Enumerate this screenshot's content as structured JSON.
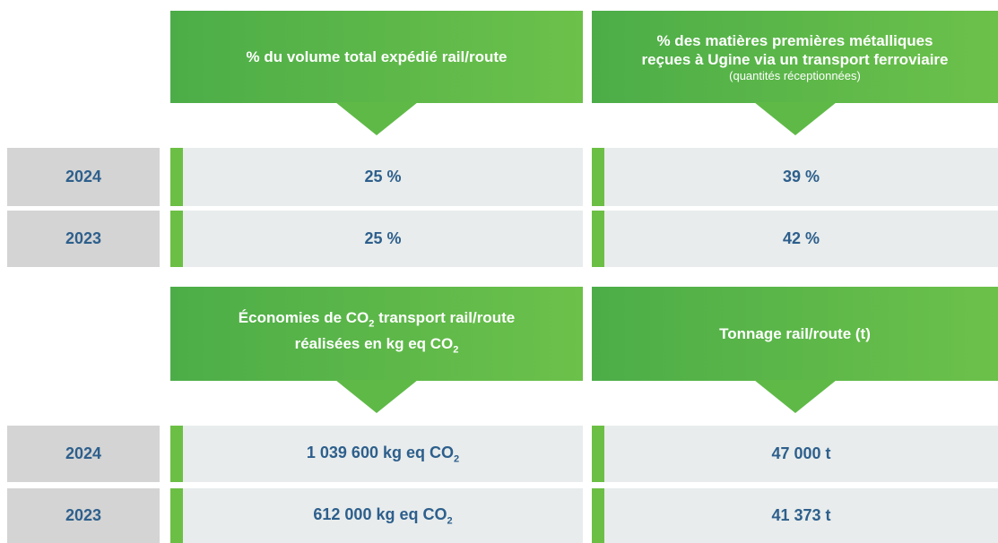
{
  "sections": [
    {
      "headers": [
        {
          "lines": [
            [
              "% du volume total expédié rail/route"
            ]
          ]
        },
        {
          "lines": [
            [
              "% des matières premières métalliques"
            ],
            [
              "reçues à Ugine via un transport ferroviaire"
            ]
          ],
          "note": "(quantités réceptionnées)"
        }
      ],
      "rows": [
        {
          "year": "2024",
          "cells": [
            [
              "25 %"
            ],
            [
              "39 %"
            ]
          ]
        },
        {
          "year": "2023",
          "cells": [
            [
              "25 %"
            ],
            [
              "42 %"
            ]
          ]
        }
      ]
    },
    {
      "headers": [
        {
          "lines": [
            [
              "Économies de CO",
              "2",
              " transport rail/route"
            ],
            [
              "réalisées en kg eq CO",
              "2"
            ]
          ]
        },
        {
          "lines": [
            [
              "Tonnage rail/route (t)"
            ]
          ]
        }
      ],
      "rows": [
        {
          "year": "2024",
          "cells": [
            [
              "1 039 600 kg eq CO",
              "2"
            ],
            [
              "47 000 t"
            ]
          ]
        },
        {
          "year": "2023",
          "cells": [
            [
              "612 000 kg eq CO",
              "2"
            ],
            [
              "41 373 t"
            ]
          ]
        }
      ]
    }
  ]
}
